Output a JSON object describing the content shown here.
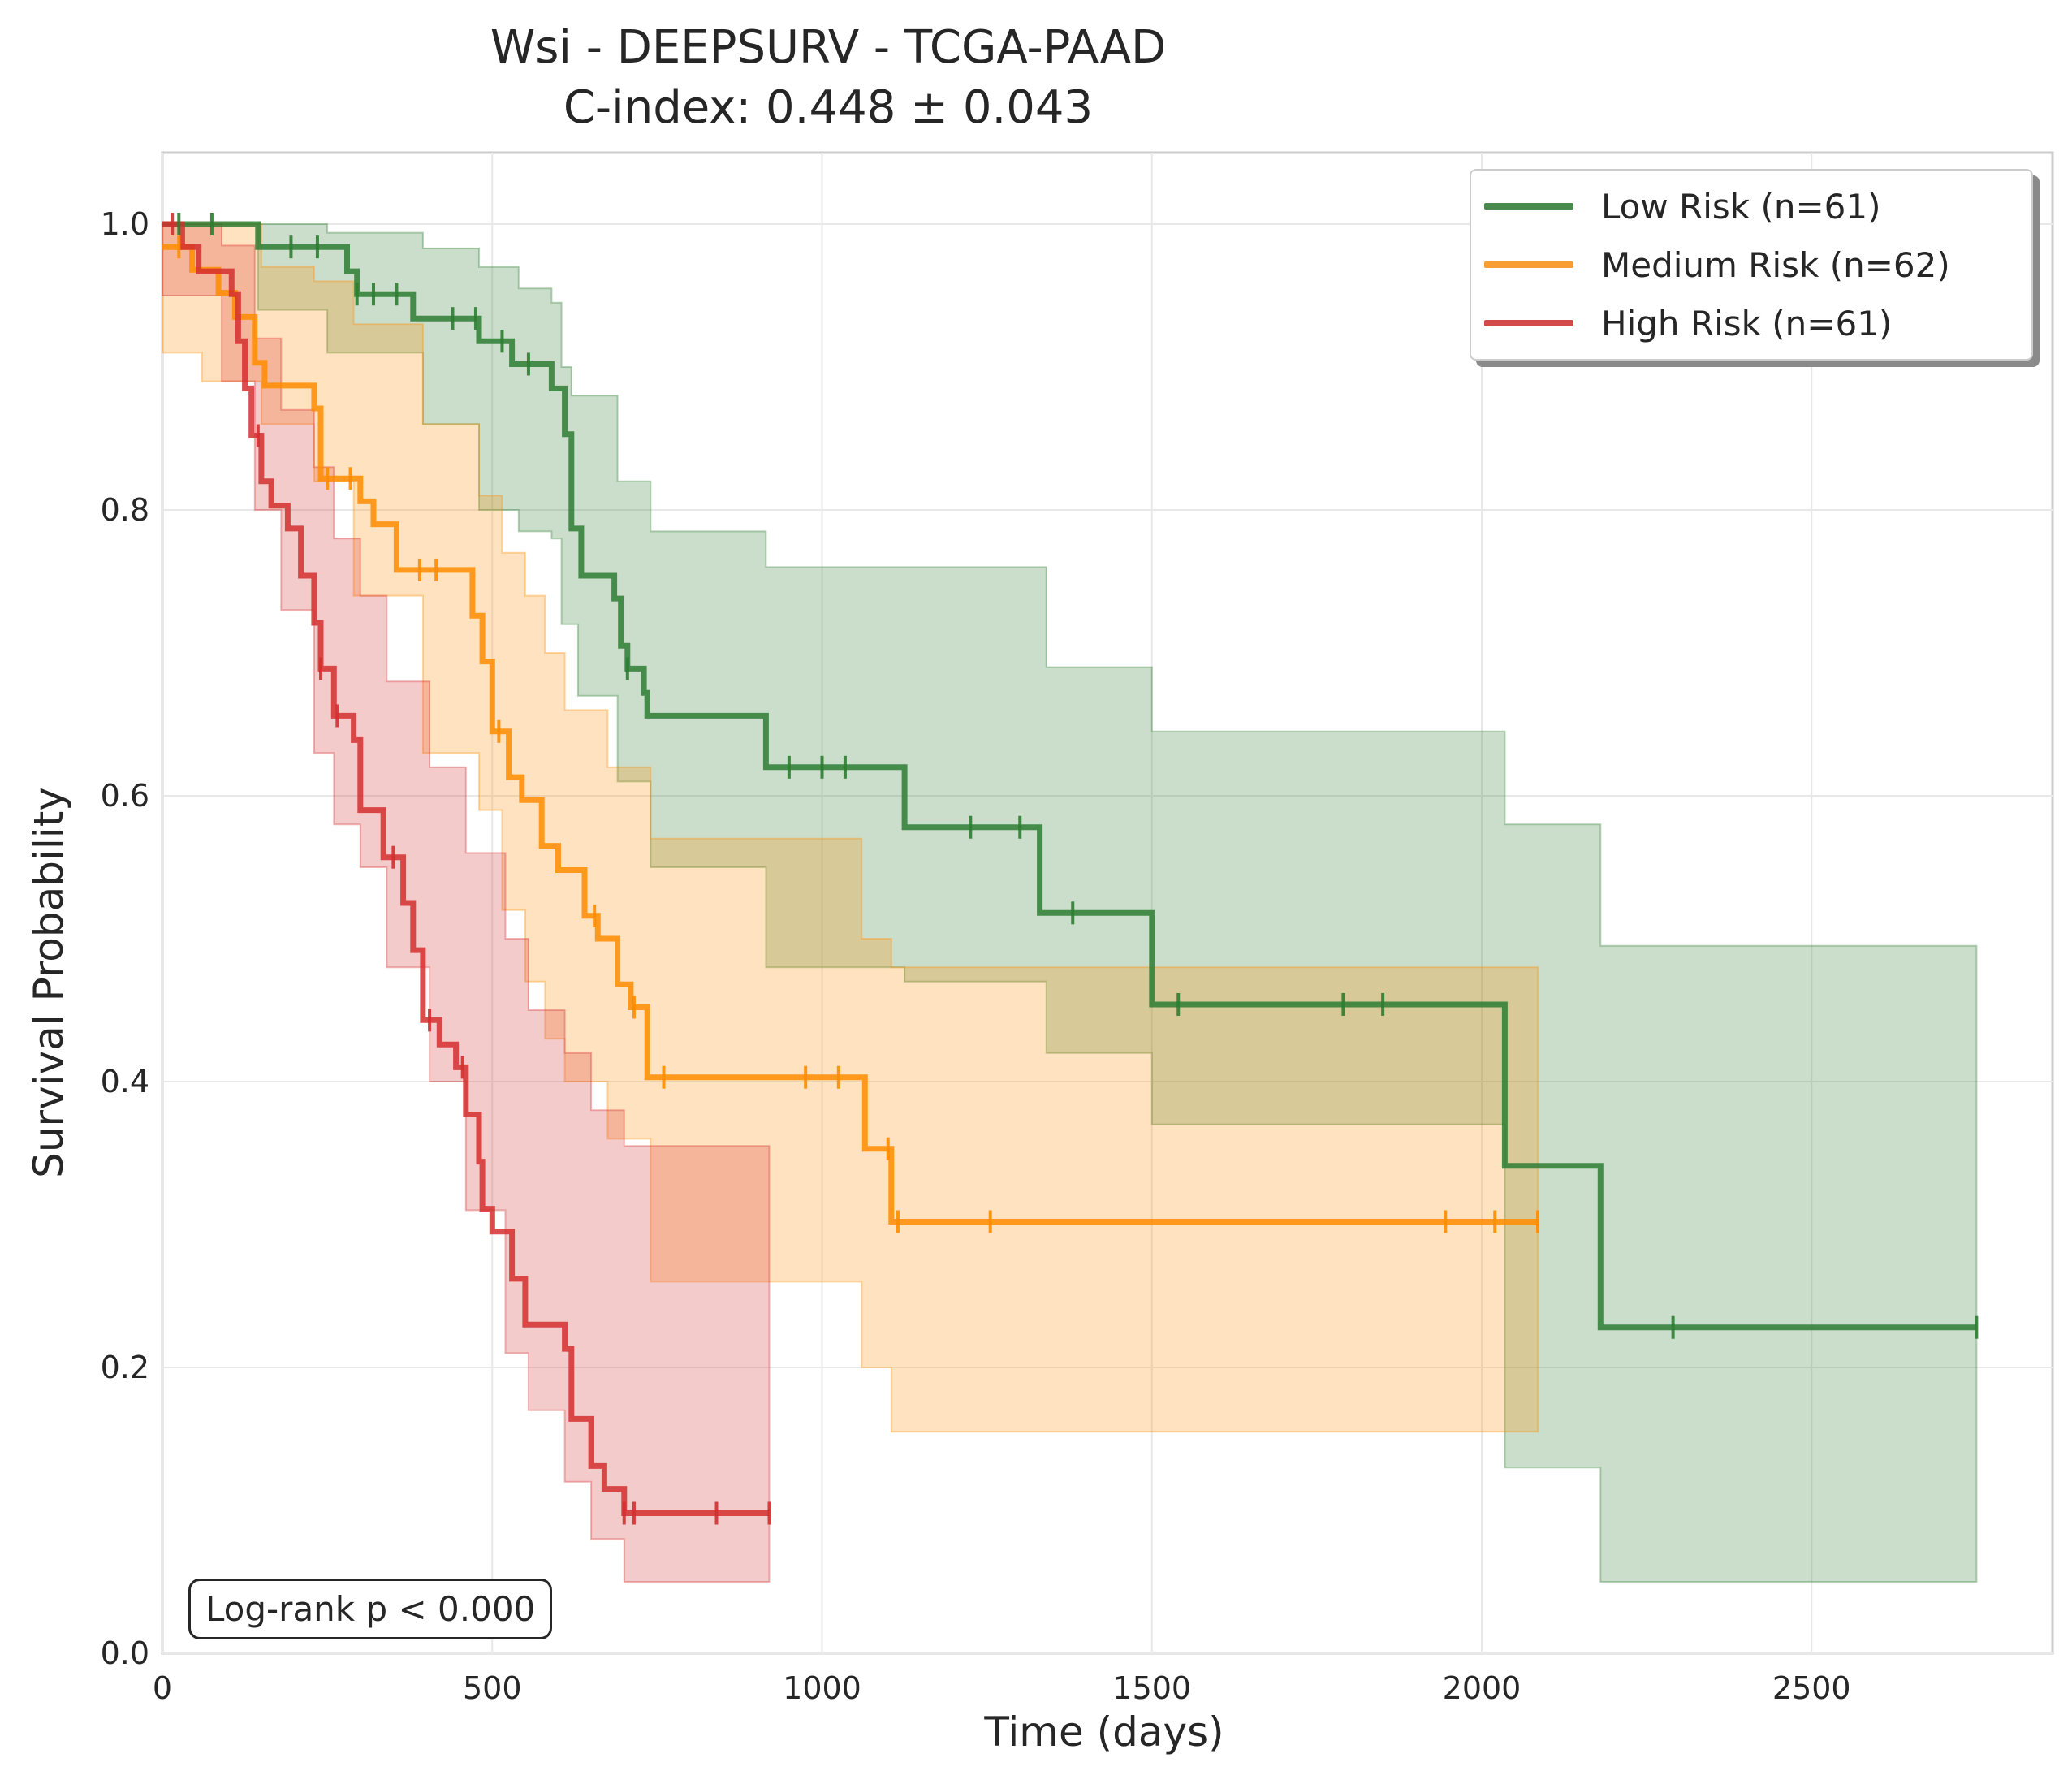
{
  "title": "Wsi - DEEPSURV - TCGA-PAAD",
  "subtitle": "C-index: 0.448 ± 0.043",
  "annotation": "Log-rank p < 0.000",
  "chart_data": {
    "type": "line",
    "subtype": "kaplan-meier",
    "title": "Wsi - DEEPSURV - TCGA-PAAD",
    "subtitle": "C-index: 0.448 ± 0.043",
    "xlabel": "Time (days)",
    "ylabel": "Survival Probability",
    "xlim": [
      0,
      2880
    ],
    "ylim": [
      0,
      1.05
    ],
    "xticks": [
      0,
      500,
      1000,
      1500,
      2000,
      2500
    ],
    "yticks": [
      0.0,
      0.2,
      0.4,
      0.6,
      0.8,
      1.0
    ],
    "xtick_labels": [
      "0",
      "500",
      "1000",
      "1500",
      "2000",
      "2500"
    ],
    "ytick_labels": [
      "0.0",
      "0.2",
      "0.4",
      "0.6",
      "0.8",
      "1.0"
    ],
    "grid": true,
    "legend_position": "top-right",
    "series": [
      {
        "name": "Low Risk (n=61)",
        "color": "#2e7d32",
        "steps": [
          [
            0,
            1.0
          ],
          [
            145,
            0.984
          ],
          [
            280,
            0.967
          ],
          [
            295,
            0.951
          ],
          [
            380,
            0.934
          ],
          [
            480,
            0.918
          ],
          [
            530,
            0.902
          ],
          [
            590,
            0.885
          ],
          [
            610,
            0.853
          ],
          [
            620,
            0.787
          ],
          [
            635,
            0.754
          ],
          [
            685,
            0.738
          ],
          [
            695,
            0.705
          ],
          [
            705,
            0.689
          ],
          [
            730,
            0.672
          ],
          [
            735,
            0.656
          ],
          [
            915,
            0.62
          ],
          [
            1125,
            0.578
          ],
          [
            1330,
            0.518
          ],
          [
            1500,
            0.454
          ],
          [
            2035,
            0.341
          ],
          [
            2180,
            0.228
          ],
          [
            2750,
            0.228
          ]
        ],
        "upper": [
          [
            0,
            1.0
          ],
          [
            145,
            1.0
          ],
          [
            250,
            0.994
          ],
          [
            395,
            0.983
          ],
          [
            480,
            0.97
          ],
          [
            540,
            0.955
          ],
          [
            590,
            0.945
          ],
          [
            605,
            0.9
          ],
          [
            620,
            0.88
          ],
          [
            690,
            0.82
          ],
          [
            740,
            0.785
          ],
          [
            915,
            0.76
          ],
          [
            1125,
            0.76
          ],
          [
            1340,
            0.69
          ],
          [
            1500,
            0.645
          ],
          [
            2035,
            0.58
          ],
          [
            2180,
            0.495
          ],
          [
            2750,
            0.495
          ]
        ],
        "lower": [
          [
            0,
            1.0
          ],
          [
            145,
            0.94
          ],
          [
            250,
            0.91
          ],
          [
            395,
            0.86
          ],
          [
            480,
            0.8
          ],
          [
            540,
            0.785
          ],
          [
            590,
            0.78
          ],
          [
            605,
            0.72
          ],
          [
            630,
            0.67
          ],
          [
            690,
            0.61
          ],
          [
            740,
            0.55
          ],
          [
            915,
            0.48
          ],
          [
            1125,
            0.47
          ],
          [
            1340,
            0.42
          ],
          [
            1500,
            0.37
          ],
          [
            2035,
            0.13
          ],
          [
            2180,
            0.05
          ],
          [
            2750,
            0.05
          ]
        ],
        "censor": [
          25,
          75,
          195,
          235,
          295,
          320,
          355,
          440,
          475,
          515,
          555,
          705,
          950,
          1000,
          1035,
          1225,
          1300,
          1380,
          1540,
          1790,
          1850,
          2290,
          2750
        ]
      },
      {
        "name": "Medium Risk (n=62)",
        "color": "#ff8c00",
        "steps": [
          [
            0,
            0.984
          ],
          [
            45,
            0.968
          ],
          [
            85,
            0.952
          ],
          [
            110,
            0.935
          ],
          [
            140,
            0.903
          ],
          [
            155,
            0.887
          ],
          [
            230,
            0.871
          ],
          [
            240,
            0.822
          ],
          [
            300,
            0.806
          ],
          [
            320,
            0.79
          ],
          [
            355,
            0.758
          ],
          [
            470,
            0.726
          ],
          [
            485,
            0.694
          ],
          [
            500,
            0.645
          ],
          [
            525,
            0.613
          ],
          [
            545,
            0.597
          ],
          [
            575,
            0.565
          ],
          [
            600,
            0.548
          ],
          [
            640,
            0.516
          ],
          [
            660,
            0.5
          ],
          [
            690,
            0.468
          ],
          [
            710,
            0.452
          ],
          [
            735,
            0.403
          ],
          [
            1065,
            0.353
          ],
          [
            1105,
            0.302
          ],
          [
            2085,
            0.302
          ]
        ],
        "upper": [
          [
            0,
            1.0
          ],
          [
            60,
            1.0
          ],
          [
            150,
            0.97
          ],
          [
            230,
            0.96
          ],
          [
            290,
            0.93
          ],
          [
            395,
            0.86
          ],
          [
            480,
            0.81
          ],
          [
            515,
            0.77
          ],
          [
            550,
            0.74
          ],
          [
            580,
            0.7
          ],
          [
            610,
            0.66
          ],
          [
            675,
            0.62
          ],
          [
            740,
            0.57
          ],
          [
            1060,
            0.5
          ],
          [
            1105,
            0.48
          ],
          [
            2085,
            0.48
          ]
        ],
        "lower": [
          [
            0,
            0.91
          ],
          [
            60,
            0.89
          ],
          [
            150,
            0.86
          ],
          [
            230,
            0.82
          ],
          [
            290,
            0.74
          ],
          [
            395,
            0.63
          ],
          [
            480,
            0.59
          ],
          [
            515,
            0.52
          ],
          [
            550,
            0.47
          ],
          [
            580,
            0.43
          ],
          [
            610,
            0.4
          ],
          [
            675,
            0.36
          ],
          [
            740,
            0.26
          ],
          [
            1060,
            0.2
          ],
          [
            1105,
            0.155
          ],
          [
            2085,
            0.155
          ]
        ],
        "censor": [
          25,
          250,
          285,
          390,
          415,
          510,
          655,
          715,
          760,
          975,
          1025,
          1100,
          1115,
          1255,
          1945,
          2020,
          2085
        ]
      },
      {
        "name": "High Risk (n=61)",
        "color": "#d32f2f",
        "steps": [
          [
            0,
            1.0
          ],
          [
            30,
            0.984
          ],
          [
            55,
            0.967
          ],
          [
            105,
            0.951
          ],
          [
            115,
            0.918
          ],
          [
            125,
            0.885
          ],
          [
            135,
            0.852
          ],
          [
            150,
            0.82
          ],
          [
            165,
            0.803
          ],
          [
            190,
            0.787
          ],
          [
            210,
            0.754
          ],
          [
            230,
            0.721
          ],
          [
            240,
            0.689
          ],
          [
            260,
            0.656
          ],
          [
            290,
            0.639
          ],
          [
            300,
            0.59
          ],
          [
            335,
            0.557
          ],
          [
            365,
            0.525
          ],
          [
            380,
            0.492
          ],
          [
            395,
            0.443
          ],
          [
            420,
            0.426
          ],
          [
            445,
            0.41
          ],
          [
            460,
            0.377
          ],
          [
            480,
            0.344
          ],
          [
            485,
            0.311
          ],
          [
            500,
            0.295
          ],
          [
            530,
            0.262
          ],
          [
            550,
            0.23
          ],
          [
            610,
            0.213
          ],
          [
            620,
            0.164
          ],
          [
            650,
            0.131
          ],
          [
            670,
            0.115
          ],
          [
            700,
            0.098
          ],
          [
            760,
            0.098
          ],
          [
            920,
            0.098
          ]
        ],
        "upper": [
          [
            0,
            1.0
          ],
          [
            90,
            0.985
          ],
          [
            140,
            0.92
          ],
          [
            180,
            0.87
          ],
          [
            230,
            0.83
          ],
          [
            260,
            0.78
          ],
          [
            300,
            0.74
          ],
          [
            340,
            0.68
          ],
          [
            405,
            0.62
          ],
          [
            460,
            0.56
          ],
          [
            520,
            0.5
          ],
          [
            555,
            0.45
          ],
          [
            610,
            0.42
          ],
          [
            650,
            0.38
          ],
          [
            700,
            0.355
          ],
          [
            920,
            0.355
          ]
        ],
        "lower": [
          [
            0,
            0.95
          ],
          [
            90,
            0.89
          ],
          [
            140,
            0.8
          ],
          [
            180,
            0.73
          ],
          [
            230,
            0.63
          ],
          [
            260,
            0.58
          ],
          [
            300,
            0.55
          ],
          [
            340,
            0.48
          ],
          [
            405,
            0.4
          ],
          [
            460,
            0.31
          ],
          [
            520,
            0.21
          ],
          [
            555,
            0.17
          ],
          [
            610,
            0.12
          ],
          [
            650,
            0.08
          ],
          [
            700,
            0.05
          ],
          [
            920,
            0.05
          ]
        ],
        "censor": [
          15,
          145,
          240,
          265,
          350,
          405,
          455,
          700,
          715,
          840,
          920
        ]
      }
    ]
  }
}
